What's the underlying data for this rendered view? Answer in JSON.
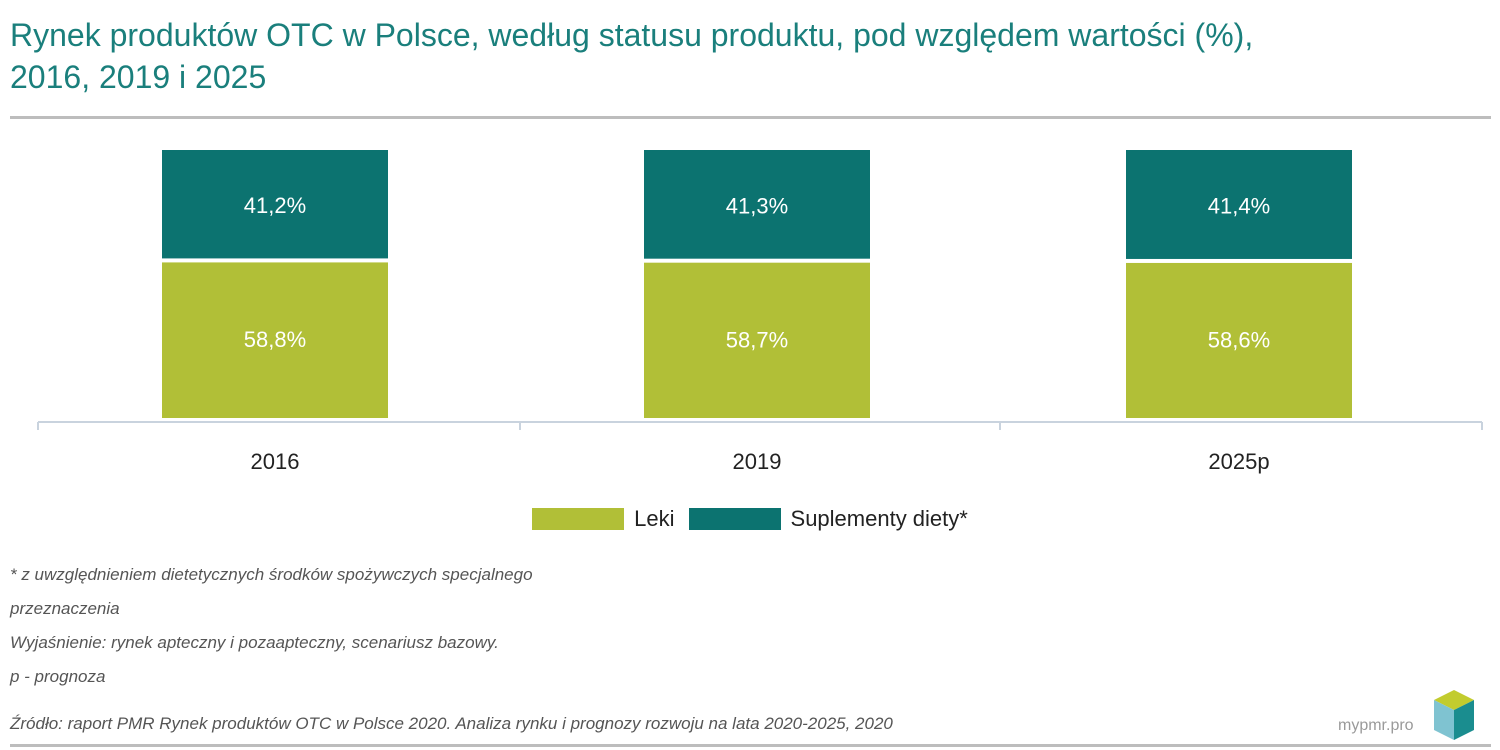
{
  "header": {
    "title_line1": "Rynek produktów OTC w Polsce, według statusu produktu, pod względem wartości (%),",
    "title_line2": "2016, 2019 i 2025"
  },
  "chart_data": {
    "type": "bar",
    "stacked": true,
    "categories": [
      "2016",
      "2019",
      "2025p"
    ],
    "series": [
      {
        "name": "Leki",
        "values": [
          58.8,
          58.7,
          58.6
        ],
        "labels": [
          "58,8%",
          "58,7%",
          "58,6%"
        ],
        "color": "#b1bf37"
      },
      {
        "name": "Suplementy diety*",
        "values": [
          41.2,
          41.3,
          41.4
        ],
        "labels": [
          "41,2%",
          "41,3%",
          "41,4%"
        ],
        "color": "#0c7370"
      }
    ],
    "ylim": [
      0,
      100
    ],
    "grid": false,
    "legend_position": "bottom-center"
  },
  "legend": {
    "items": [
      {
        "label": "Leki",
        "color": "#b1bf37"
      },
      {
        "label": "Suplementy diety*",
        "color": "#0c7370"
      }
    ]
  },
  "notes": [
    "* z uwzględnieniem dietetycznych środków spożywczych specjalnego",
    "przeznaczenia",
    "Wyjaśnienie: rynek apteczny i pozaapteczny, scenariusz bazowy.",
    "p - prognoza"
  ],
  "source": "Źródło: raport PMR Rynek produktów OTC w Polsce 2020. Analiza rynku i prognozy rozwoju na lata 2020-2025, 2020",
  "brand": {
    "name": "mypmr.pro",
    "logo_icon": "cube-logo-icon"
  }
}
